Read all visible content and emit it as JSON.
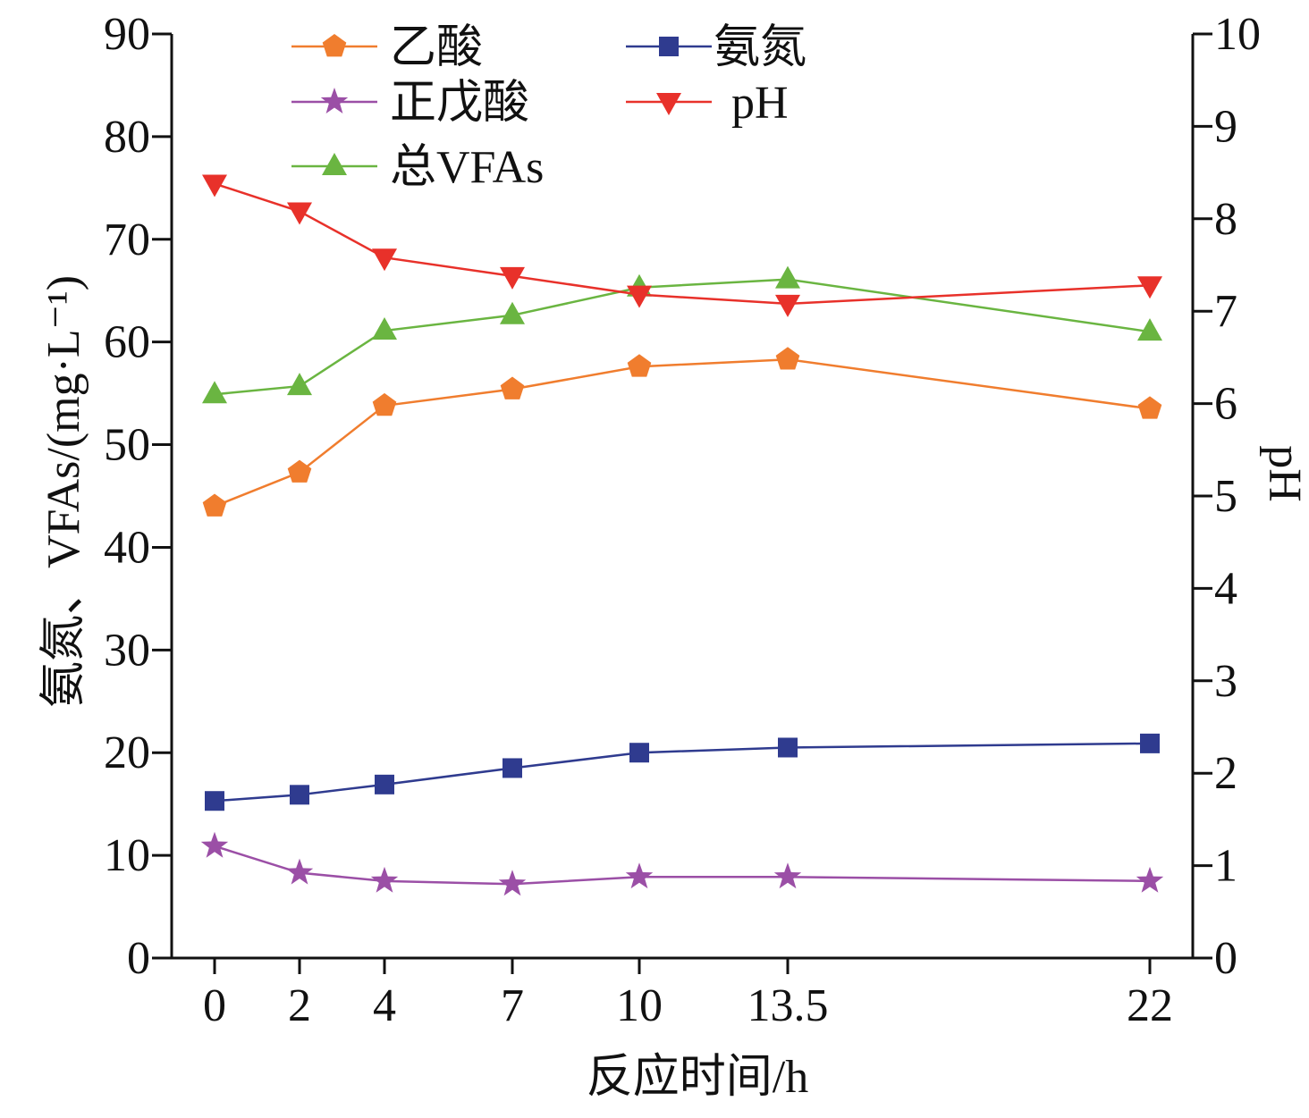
{
  "chart_data": {
    "type": "line",
    "x_categories": [
      "0",
      "2",
      "4",
      "7",
      "10",
      "13.5",
      "22"
    ],
    "x": [
      0,
      2,
      4,
      7,
      10,
      13.5,
      22
    ],
    "xlabel": "反应时间/h",
    "ylabel_left": "氨氮、VFAs/(mg·L⁻¹)",
    "ylabel_right": "pH",
    "ylim_left": [
      0,
      90
    ],
    "ylim_right": [
      0,
      10
    ],
    "yticks_left": [
      0,
      10,
      20,
      30,
      40,
      50,
      60,
      70,
      80,
      90
    ],
    "yticks_right": [
      0,
      1,
      2,
      3,
      4,
      5,
      6,
      7,
      8,
      9,
      10
    ],
    "grid": false,
    "legend_position": "top-left",
    "series": [
      {
        "name": "乙酸",
        "axis": "left",
        "marker": "pentagon",
        "color": "#f07d2e",
        "line_color": "#f07d2e",
        "values": [
          44.0,
          47.3,
          53.8,
          55.4,
          57.6,
          58.3,
          53.5
        ]
      },
      {
        "name": "正戊酸",
        "axis": "left",
        "marker": "star",
        "color": "#9b4fa6",
        "line_color": "#9b4fa6",
        "values": [
          10.9,
          8.3,
          7.5,
          7.2,
          7.9,
          7.9,
          7.5
        ]
      },
      {
        "name": "总VFAs",
        "axis": "left",
        "marker": "triangle-up",
        "color": "#6ab541",
        "line_color": "#6ab541",
        "values": [
          54.9,
          55.7,
          61.1,
          62.6,
          65.3,
          66.1,
          61.0
        ]
      },
      {
        "name": "氨氮",
        "axis": "left",
        "marker": "square",
        "color": "#2f3b8f",
        "line_color": "#2f3b8f",
        "values": [
          15.3,
          15.9,
          16.9,
          18.5,
          20.0,
          20.5,
          20.9
        ]
      },
      {
        "name": "pH",
        "axis": "right",
        "marker": "triangle-down",
        "color": "#e8312a",
        "line_color": "#e8312a",
        "values": [
          8.38,
          8.08,
          7.58,
          7.38,
          7.18,
          7.08,
          7.28
        ]
      }
    ]
  }
}
